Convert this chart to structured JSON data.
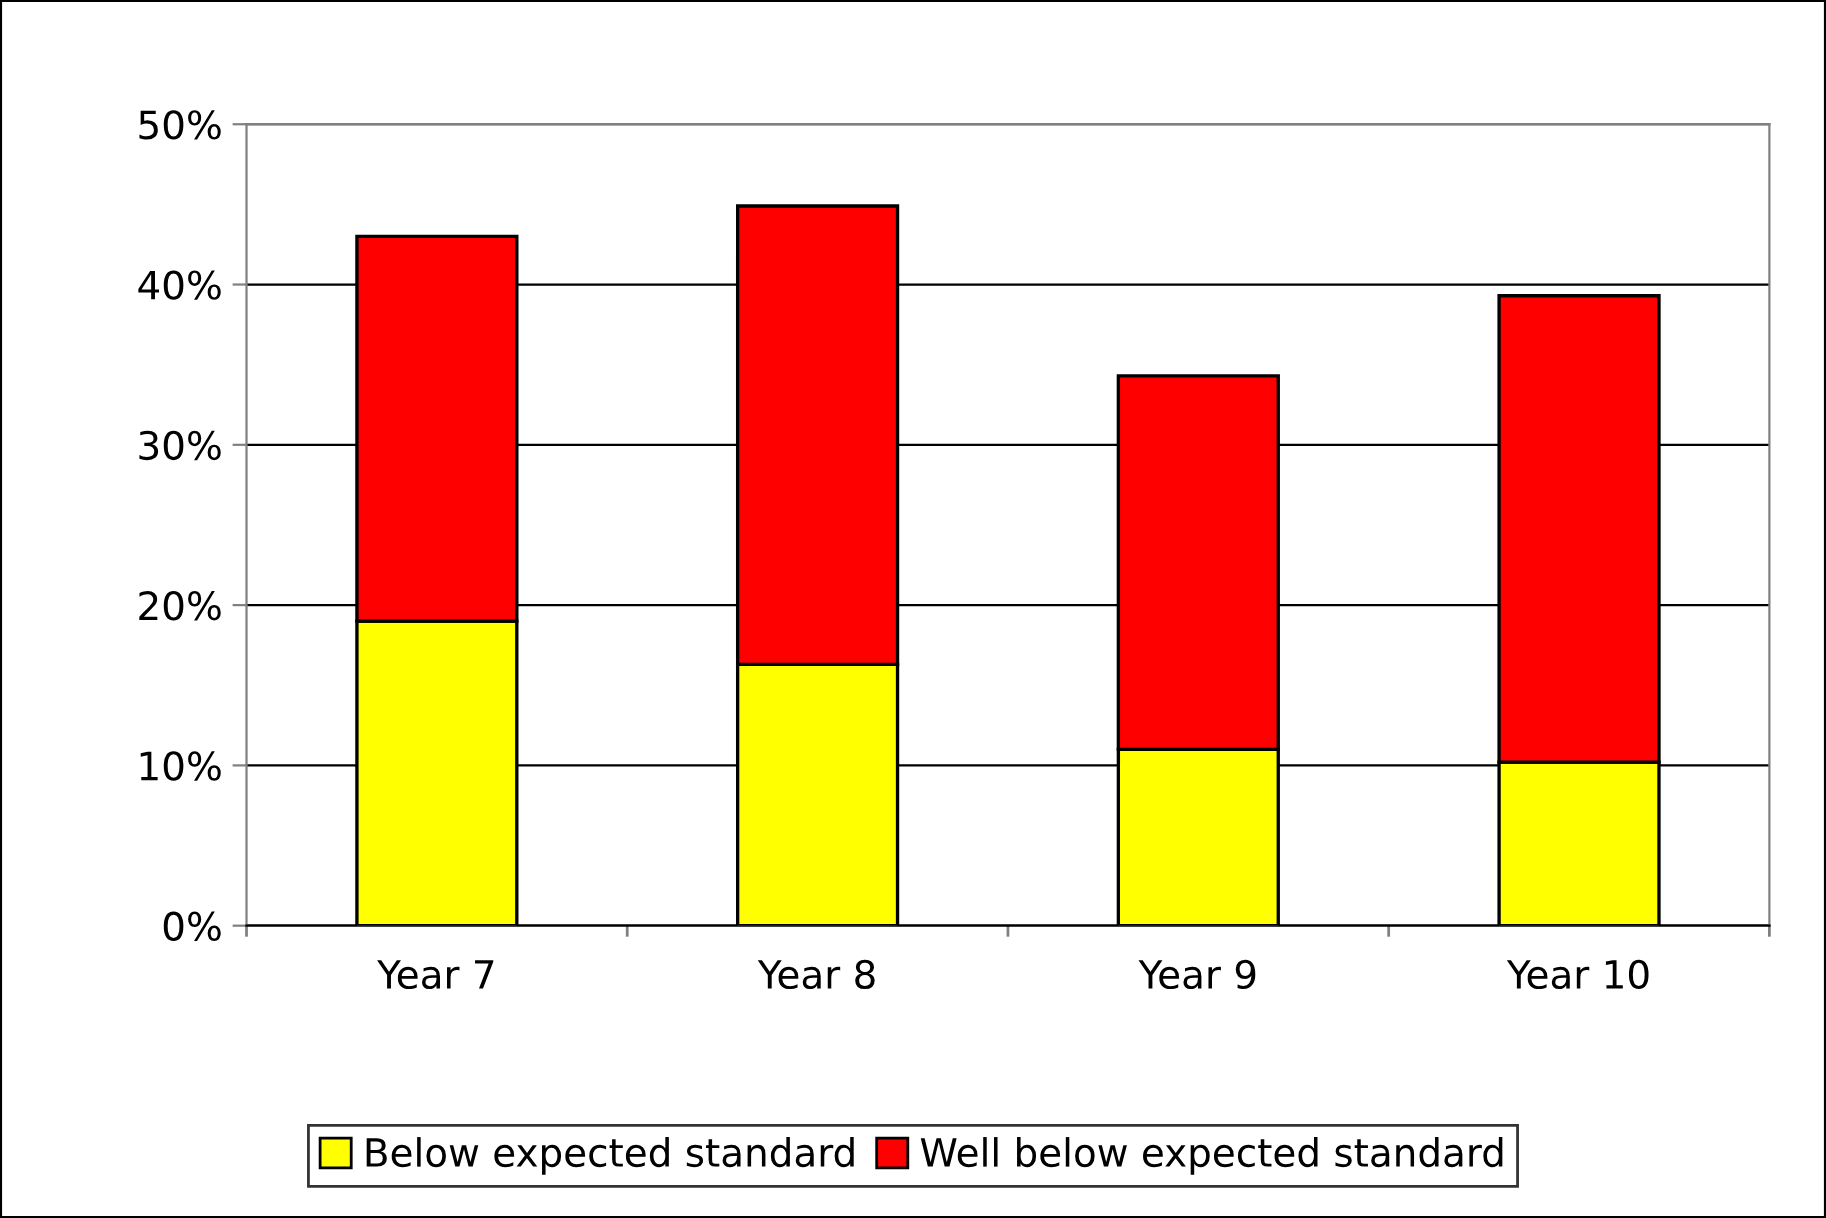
{
  "chart_data": {
    "type": "bar",
    "stacked": true,
    "categories": [
      "Year 7",
      "Year 8",
      "Year 9",
      "Year 10"
    ],
    "series": [
      {
        "name": "Below expected standard",
        "color": "#ffff00",
        "values": [
          19,
          16.3,
          11,
          10.2
        ]
      },
      {
        "name": "Well below expected standard",
        "color": "#ff0000",
        "values": [
          24,
          28.6,
          23.3,
          29.1
        ]
      }
    ],
    "ylim": [
      0,
      50
    ],
    "yticks": [
      {
        "value": 0,
        "label": "0%"
      },
      {
        "value": 10,
        "label": "10%"
      },
      {
        "value": 20,
        "label": "20%"
      },
      {
        "value": 30,
        "label": "30%"
      },
      {
        "value": 40,
        "label": "40%"
      },
      {
        "value": 50,
        "label": "50%"
      }
    ],
    "grid": "y",
    "legend": "bottom"
  }
}
